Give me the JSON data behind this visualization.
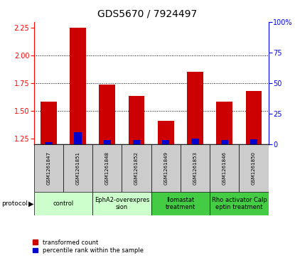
{
  "title": "GDS5670 / 7924497",
  "samples": [
    "GSM1261847",
    "GSM1261851",
    "GSM1261848",
    "GSM1261852",
    "GSM1261849",
    "GSM1261853",
    "GSM1261846",
    "GSM1261850"
  ],
  "transformed_counts": [
    1.585,
    2.25,
    1.74,
    1.635,
    1.415,
    1.855,
    1.585,
    1.68
  ],
  "percentile_ranks": [
    2.0,
    10.0,
    3.5,
    3.5,
    3.5,
    5.0,
    3.5,
    4.5
  ],
  "ylim_left": [
    1.2,
    2.3
  ],
  "ylim_right": [
    0,
    100
  ],
  "yticks_left": [
    1.25,
    1.5,
    1.75,
    2.0,
    2.25
  ],
  "yticks_right": [
    0,
    25,
    50,
    75,
    100
  ],
  "protocol_groups": [
    {
      "label": "control",
      "start": 0,
      "end": 1,
      "color": "#ccffcc"
    },
    {
      "label": "EphA2-overexpres\nsion",
      "start": 2,
      "end": 3,
      "color": "#ccffcc"
    },
    {
      "label": "Ilomastat\ntreatment",
      "start": 4,
      "end": 5,
      "color": "#44cc44"
    },
    {
      "label": "Rho activator Calp\neptin treatment",
      "start": 6,
      "end": 7,
      "color": "#44cc44"
    }
  ],
  "bar_color_red": "#cc0000",
  "bar_color_blue": "#0000cc",
  "bar_width": 0.55,
  "blue_bar_width": 0.25,
  "background_color": "#ffffff",
  "sample_bg_color": "#cccccc",
  "grid_dotted_at": [
    1.5,
    1.75,
    2.0
  ],
  "title_fontsize": 10,
  "tick_fontsize": 7,
  "sample_fontsize": 5,
  "proto_fontsize": 6
}
